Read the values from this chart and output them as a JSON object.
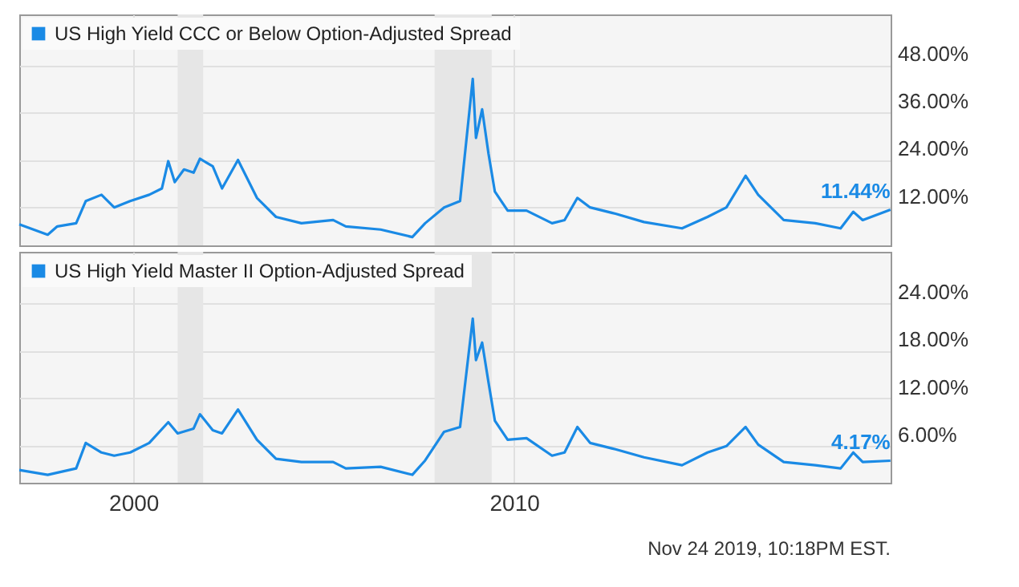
{
  "chart_data": [
    {
      "type": "line",
      "tick_labels": "y",
      "grid": true,
      "legend": "top left",
      "marker": "none",
      "line_style": "solid",
      "xlim": [
        "1997-01",
        "2019-11-24"
      ],
      "xticks": [
        "2000",
        "2010"
      ],
      "ylim": [
        2.4,
        60.8
      ],
      "yticks": [
        {
          "value": 12,
          "label": "12.00%"
        },
        {
          "value": 24,
          "label": "24.00%"
        },
        {
          "value": 36,
          "label": "36.00%"
        },
        {
          "value": 48,
          "label": "48.00%"
        }
      ],
      "bands": [
        {
          "axis": "x",
          "from": "2001-03",
          "to": "2001-11",
          "color": "#e6e6e6"
        },
        {
          "axis": "x",
          "from": "2007-12",
          "to": "2009-06",
          "color": "#e6e6e6"
        }
      ],
      "annotations": [
        {
          "text": "11.44%",
          "x": "2019-11-22",
          "y": 11.44
        }
      ],
      "series": [
        {
          "name": "US High Yield CCC or Below Option-Adjusted Spread",
          "color": "#1a8ae5",
          "x": [
            "1997-01",
            "1997-10",
            "1998-01",
            "1998-07",
            "1998-10",
            "1999-03",
            "1999-07",
            "1999-12",
            "2000-06",
            "2000-10",
            "2000-12",
            "2001-02",
            "2001-05",
            "2001-08",
            "2001-10",
            "2002-02",
            "2002-05",
            "2002-10",
            "2003-04",
            "2003-10",
            "2004-06",
            "2005-04",
            "2005-08",
            "2006-07",
            "2007-05",
            "2007-09",
            "2008-03",
            "2008-08",
            "2008-12",
            "2009-01",
            "2009-03",
            "2009-05",
            "2009-07",
            "2009-11",
            "2010-05",
            "2011-01",
            "2011-05",
            "2011-09",
            "2012-01",
            "2012-09",
            "2013-06",
            "2014-06",
            "2015-02",
            "2015-08",
            "2016-02",
            "2016-06",
            "2017-02",
            "2017-12",
            "2018-08",
            "2018-12",
            "2019-03",
            "2019-11-22"
          ],
          "values": [
            7.7,
            5.1,
            7.2,
            8.0,
            13.6,
            15.2,
            12.0,
            13.6,
            15.2,
            16.8,
            23.7,
            18.4,
            21.6,
            20.8,
            24.3,
            22.4,
            16.8,
            24.0,
            14.4,
            9.6,
            8.0,
            8.8,
            7.2,
            6.4,
            4.5,
            8.0,
            12.0,
            13.6,
            44.5,
            29.6,
            36.8,
            25.6,
            16.0,
            11.2,
            11.2,
            8.0,
            8.8,
            14.4,
            12.0,
            10.4,
            8.3,
            6.7,
            9.6,
            12.0,
            20.0,
            15.2,
            8.8,
            8.0,
            6.7,
            10.9,
            8.8,
            11.44
          ]
        }
      ]
    },
    {
      "type": "line",
      "grid": true,
      "legend": "top left",
      "marker": "none",
      "line_style": "solid",
      "xlim": [
        "1997-01",
        "2019-11-24"
      ],
      "xticks": [
        "2000",
        "2010"
      ],
      "ylim": [
        1.4,
        30.4
      ],
      "yticks": [
        {
          "value": 6,
          "label": "6.00%"
        },
        {
          "value": 12,
          "label": "12.00%"
        },
        {
          "value": 18,
          "label": "18.00%"
        },
        {
          "value": 24,
          "label": "24.00%"
        }
      ],
      "bands": [
        {
          "axis": "x",
          "from": "2001-03",
          "to": "2001-11",
          "color": "#e6e6e6"
        },
        {
          "axis": "x",
          "from": "2007-12",
          "to": "2009-06",
          "color": "#e6e6e6"
        }
      ],
      "annotations": [
        {
          "text": "4.17%",
          "x": "2019-11-22",
          "y": 4.17
        },
        "Nov 24 2019, 10:18PM EST."
      ],
      "series": [
        {
          "name": "US High Yield Master II Option-Adjusted Spread",
          "color": "#1a8ae5",
          "x": [
            "1997-01",
            "1997-10",
            "1998-07",
            "1998-10",
            "1999-03",
            "1999-07",
            "1999-12",
            "2000-06",
            "2000-12",
            "2001-03",
            "2001-08",
            "2001-10",
            "2002-02",
            "2002-05",
            "2002-10",
            "2003-04",
            "2003-10",
            "2004-06",
            "2005-04",
            "2005-08",
            "2006-07",
            "2007-05",
            "2007-09",
            "2008-03",
            "2008-08",
            "2008-12",
            "2009-01",
            "2009-03",
            "2009-05",
            "2009-07",
            "2009-11",
            "2010-05",
            "2011-01",
            "2011-05",
            "2011-09",
            "2012-01",
            "2012-09",
            "2013-06",
            "2014-06",
            "2015-02",
            "2015-08",
            "2016-02",
            "2016-06",
            "2017-02",
            "2017-12",
            "2018-08",
            "2018-12",
            "2019-03",
            "2019-11-22"
          ],
          "values": [
            3.0,
            2.4,
            3.2,
            6.4,
            5.2,
            4.8,
            5.2,
            6.4,
            9.0,
            7.6,
            8.2,
            10.0,
            8.0,
            7.6,
            10.6,
            6.8,
            4.4,
            4.0,
            4.0,
            3.2,
            3.4,
            2.4,
            4.2,
            7.8,
            8.4,
            22.0,
            16.8,
            19.0,
            14.0,
            9.2,
            6.8,
            7.0,
            4.8,
            5.2,
            8.4,
            6.4,
            5.6,
            4.6,
            3.6,
            5.2,
            6.0,
            8.4,
            6.2,
            4.0,
            3.6,
            3.2,
            5.2,
            4.0,
            4.17
          ]
        }
      ]
    }
  ]
}
